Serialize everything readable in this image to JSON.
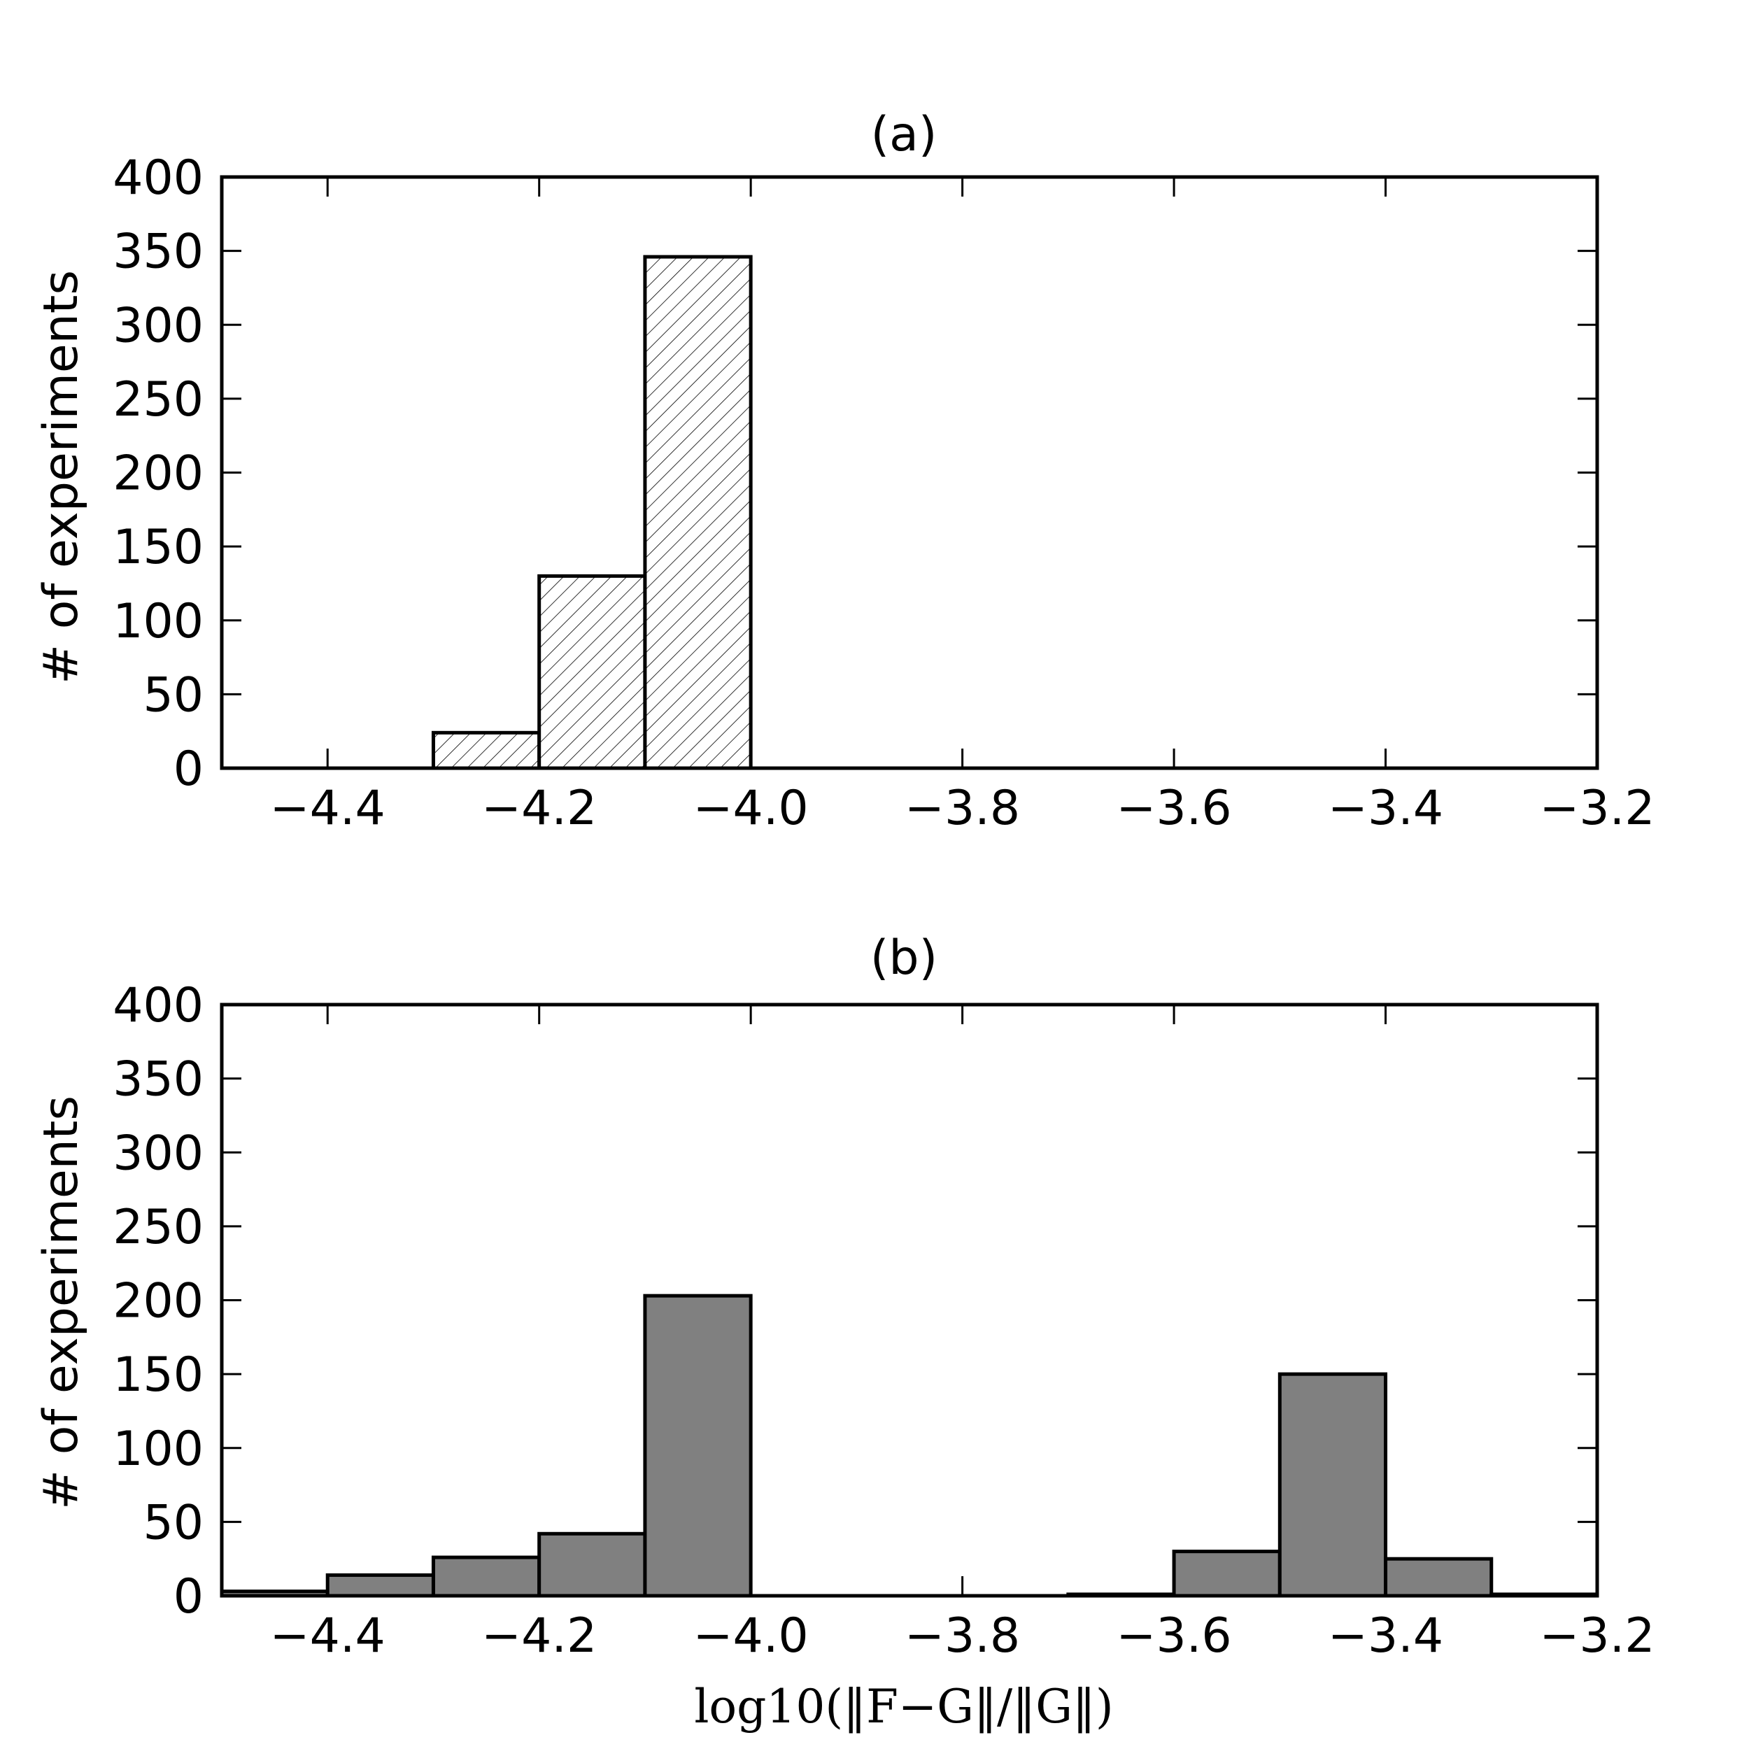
{
  "chart_data": [
    {
      "type": "bar",
      "title": "(a)",
      "xlabel": "",
      "ylabel": "# of experiments",
      "xlim": [
        -4.5,
        -3.2
      ],
      "ylim": [
        0,
        400
      ],
      "xticks": [
        "−4.4",
        "−4.2",
        "−4.0",
        "−3.8",
        "−3.6",
        "−3.4",
        "−3.2"
      ],
      "yticks": [
        "0",
        "50",
        "100",
        "150",
        "200",
        "250",
        "300",
        "350",
        "400"
      ],
      "fill": "hatched",
      "bin_width": 0.1,
      "bins": [
        {
          "left": -4.3,
          "count": 24
        },
        {
          "left": -4.2,
          "count": 130
        },
        {
          "left": -4.1,
          "count": 346
        }
      ]
    },
    {
      "type": "bar",
      "title": "(b)",
      "xlabel": "log10(‖F−G‖/‖G‖)",
      "ylabel": "# of experiments",
      "xlim": [
        -4.5,
        -3.2
      ],
      "ylim": [
        0,
        400
      ],
      "xticks": [
        "−4.4",
        "−4.2",
        "−4.0",
        "−3.8",
        "−3.6",
        "−3.4",
        "−3.2"
      ],
      "yticks": [
        "0",
        "50",
        "100",
        "150",
        "200",
        "250",
        "300",
        "350",
        "400"
      ],
      "fill": "#808080",
      "bin_width": 0.1,
      "bins": [
        {
          "left": -4.5,
          "count": 3
        },
        {
          "left": -4.4,
          "count": 14
        },
        {
          "left": -4.3,
          "count": 26
        },
        {
          "left": -4.2,
          "count": 42
        },
        {
          "left": -4.1,
          "count": 203
        },
        {
          "left": -3.7,
          "count": 1
        },
        {
          "left": -3.6,
          "count": 30
        },
        {
          "left": -3.5,
          "count": 150
        },
        {
          "left": -3.4,
          "count": 25
        },
        {
          "left": -3.3,
          "count": 1
        }
      ]
    }
  ]
}
